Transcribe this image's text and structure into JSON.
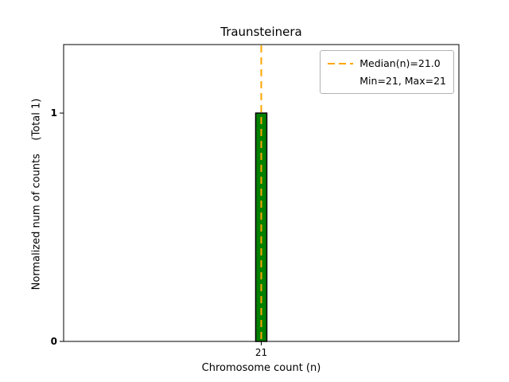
{
  "chart_data": {
    "type": "bar",
    "title": "Traunsteinera",
    "xlabel": "Chromosome count (n)",
    "ylabel": "Normalized num of counts    (Total 1)",
    "categories": [
      "21"
    ],
    "values": [
      1
    ],
    "ylim": [
      0,
      1.3
    ],
    "ytick_values": [
      0,
      1
    ],
    "grid": false,
    "bar_color": "#008000",
    "bar_edge_color": "#000000",
    "median_line": {
      "value": 21,
      "color": "#ffa500",
      "style": "dashed"
    },
    "legend": {
      "position": "upper right",
      "entries": [
        "Median(n)=21.0",
        "Min=21, Max=21"
      ]
    }
  }
}
